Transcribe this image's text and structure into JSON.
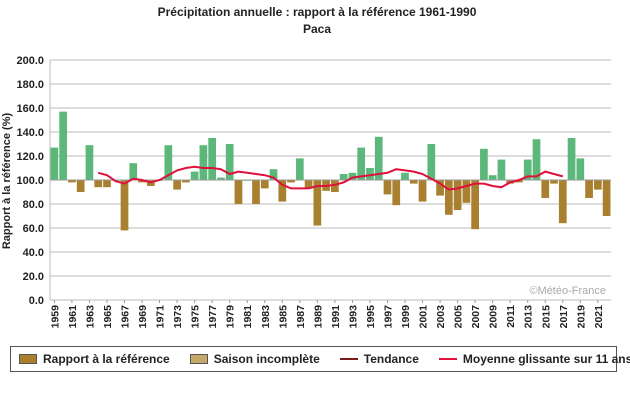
{
  "colors": {
    "above": "#5cb87a",
    "below": "#a98030",
    "incomplete": "#c8a86a",
    "trend": "#7a1a1a",
    "moving_average": "#e0103c",
    "grid": "#bbbbbb"
  },
  "watermark": "©Météo-France",
  "legend": [
    {
      "label": "Rapport à la référence",
      "kind": "box",
      "color": "#a98030",
      "name": "legend-item-rapport"
    },
    {
      "label": "Saison incomplète",
      "kind": "box",
      "color": "#c8a86a",
      "name": "legend-item-saison-incomplete"
    },
    {
      "label": "Tendance",
      "kind": "line",
      "color": "#7a1a1a",
      "name": "legend-item-tendance"
    },
    {
      "label": "Moyenne glissante sur 11 ans",
      "kind": "line",
      "color": "#e0103c",
      "name": "legend-item-moyenne-glissante"
    }
  ],
  "chart_data": {
    "type": "bar",
    "title": "Précipitation annuelle : rapport à la référence 1961-1990",
    "subtitle": "Paca",
    "ylabel": "Rapport à la référence (%)",
    "xlabel": "",
    "ylim": [
      0,
      200
    ],
    "yticks": [
      "0.0",
      "20.0",
      "40.0",
      "60.0",
      "80.0",
      "100.0",
      "120.0",
      "140.0",
      "160.0",
      "180.0",
      "200.0"
    ],
    "baseline": 100,
    "grid": true,
    "x": [
      1959,
      1960,
      1961,
      1962,
      1963,
      1964,
      1965,
      1966,
      1967,
      1968,
      1969,
      1970,
      1971,
      1972,
      1973,
      1974,
      1975,
      1976,
      1977,
      1978,
      1979,
      1980,
      1981,
      1982,
      1983,
      1984,
      1985,
      1986,
      1987,
      1988,
      1989,
      1990,
      1991,
      1992,
      1993,
      1994,
      1995,
      1996,
      1997,
      1998,
      1999,
      2000,
      2001,
      2002,
      2003,
      2004,
      2005,
      2006,
      2007,
      2008,
      2009,
      2010,
      2011,
      2012,
      2013,
      2014,
      2015,
      2016,
      2017,
      2018,
      2019,
      2020,
      2021,
      2022
    ],
    "xtick_labels": [
      "1959",
      "1961",
      "1963",
      "1965",
      "1967",
      "1969",
      "1971",
      "1973",
      "1975",
      "1977",
      "1979",
      "1981",
      "1983",
      "1985",
      "1987",
      "1989",
      "1991",
      "1993",
      "1995",
      "1997",
      "1999",
      "2001",
      "2003",
      "2005",
      "2007",
      "2009",
      "2011",
      "2013",
      "2015",
      "2017",
      "2019",
      "2021"
    ],
    "series": [
      {
        "name": "Rapport à la référence",
        "values": [
          127,
          157,
          98,
          90,
          129,
          94,
          94,
          100,
          58,
          114,
          98,
          95,
          100,
          129,
          92,
          98,
          107,
          129,
          135,
          102,
          130,
          80,
          100,
          80,
          93,
          109,
          82,
          98,
          118,
          93,
          62,
          91,
          90,
          105,
          106,
          127,
          110,
          136,
          88,
          79,
          106,
          97,
          82,
          130,
          87,
          71,
          75,
          81,
          59,
          126,
          104,
          117,
          97,
          98,
          117,
          134,
          85,
          97,
          64,
          135,
          118,
          85,
          92,
          70
        ]
      },
      {
        "name": "Moyenne glissante sur 11 ans",
        "x": [
          1964,
          1965,
          1966,
          1967,
          1968,
          1969,
          1970,
          1971,
          1972,
          1973,
          1974,
          1975,
          1976,
          1977,
          1978,
          1979,
          1980,
          1981,
          1982,
          1983,
          1984,
          1985,
          1986,
          1987,
          1988,
          1989,
          1990,
          1991,
          1992,
          1993,
          1994,
          1995,
          1996,
          1997,
          1998,
          1999,
          2000,
          2001,
          2002,
          2003,
          2004,
          2005,
          2006,
          2007,
          2008,
          2009,
          2010,
          2011,
          2012,
          2013,
          2014,
          2015,
          2016,
          2017
        ],
        "values": [
          106,
          104,
          99,
          97,
          101,
          100,
          98,
          100,
          104,
          108,
          110,
          111,
          110,
          110,
          109,
          105,
          107,
          106,
          105,
          104,
          102,
          96,
          93,
          93,
          93,
          95,
          95,
          96,
          98,
          102,
          103,
          104,
          105,
          106,
          109,
          108,
          107,
          105,
          101,
          97,
          92,
          93,
          95,
          97,
          97,
          95,
          94,
          98,
          100,
          103,
          103,
          107,
          105,
          103
        ]
      }
    ]
  }
}
